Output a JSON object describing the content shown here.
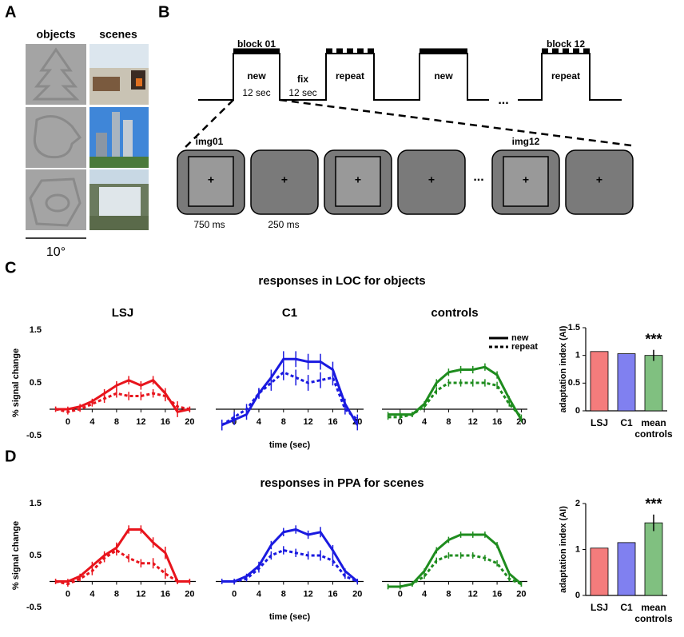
{
  "labels": [
    "A",
    "B",
    "C",
    "D"
  ],
  "panel_a": {
    "headers": [
      "objects",
      "scenes"
    ],
    "scale": "10°"
  },
  "panel_b": {
    "block_first": "block 01",
    "block_last": "block 12",
    "conditions": [
      "new",
      "repeat",
      "new",
      "repeat"
    ],
    "block_duration": "12 sec",
    "fix": "fix",
    "fix_duration": "12 sec",
    "ellipsis": "...",
    "frames": [
      "img01",
      "img12"
    ],
    "durations": [
      "750 ms",
      "250 ms"
    ],
    "fixation": "+"
  },
  "chart_data": [
    {
      "type": "line",
      "title": "responses in LOC for objects",
      "subtitle": "LSJ",
      "ylabel": "% signal change",
      "x": [
        -2,
        0,
        2,
        4,
        6,
        8,
        10,
        12,
        14,
        16,
        18,
        20
      ],
      "xlim": [
        -3,
        21
      ],
      "xticks": [
        0,
        4,
        8,
        12,
        16,
        20
      ],
      "ylim": [
        -0.5,
        1.5
      ],
      "yticks": [
        -0.5,
        0.5,
        1.5
      ],
      "series": [
        {
          "color": "#e8141c",
          "style": "solid",
          "values": [
            0,
            0,
            0.05,
            0.15,
            0.3,
            0.45,
            0.55,
            0.45,
            0.55,
            0.3,
            -0.05,
            0
          ],
          "errors": [
            0.05,
            0.05,
            0.05,
            0.05,
            0.08,
            0.08,
            0.08,
            0.08,
            0.08,
            0.1,
            0.1,
            0.05
          ]
        },
        {
          "color": "#e8141c",
          "style": "dashed",
          "values": [
            0,
            -0.05,
            0,
            0.1,
            0.2,
            0.3,
            0.25,
            0.25,
            0.3,
            0.25,
            0.05,
            0
          ],
          "errors": [
            0.05,
            0.05,
            0.05,
            0.05,
            0.08,
            0.08,
            0.08,
            0.08,
            0.08,
            0.1,
            0.1,
            0.05
          ]
        }
      ]
    },
    {
      "type": "line",
      "subtitle": "C1",
      "xlabel": "time (sec)",
      "x": [
        -2,
        0,
        2,
        4,
        6,
        8,
        10,
        12,
        14,
        16,
        18,
        20
      ],
      "xlim": [
        -3,
        21
      ],
      "xticks": [
        0,
        4,
        8,
        12,
        16,
        20
      ],
      "ylim": [
        -0.5,
        1.5
      ],
      "series": [
        {
          "name": "new",
          "color": "#1a1ae0",
          "style": "solid",
          "values": [
            -0.3,
            -0.2,
            -0.1,
            0.3,
            0.6,
            0.95,
            0.95,
            0.9,
            0.9,
            0.75,
            0.1,
            -0.3
          ],
          "errors": [
            0.1,
            0.1,
            0.1,
            0.1,
            0.15,
            0.15,
            0.15,
            0.15,
            0.15,
            0.15,
            0.1,
            0.1
          ]
        },
        {
          "name": "repeat",
          "color": "#1a1ae0",
          "style": "dashed",
          "values": [
            -0.3,
            -0.15,
            0,
            0.3,
            0.5,
            0.7,
            0.6,
            0.5,
            0.55,
            0.6,
            0,
            -0.2
          ],
          "errors": [
            0.1,
            0.1,
            0.1,
            0.1,
            0.15,
            0.15,
            0.15,
            0.15,
            0.15,
            0.15,
            0.1,
            0.1
          ]
        }
      ]
    },
    {
      "type": "line",
      "subtitle": "controls",
      "x": [
        -2,
        0,
        2,
        4,
        6,
        8,
        10,
        12,
        14,
        16,
        18,
        20
      ],
      "xlim": [
        -3,
        21
      ],
      "xticks": [
        0,
        4,
        8,
        12,
        16,
        20
      ],
      "ylim": [
        -0.5,
        1.5
      ],
      "series": [
        {
          "color": "#1e8c1e",
          "style": "solid",
          "values": [
            -0.1,
            -0.1,
            -0.1,
            0.1,
            0.5,
            0.7,
            0.75,
            0.75,
            0.8,
            0.65,
            0.2,
            -0.2
          ],
          "errors": [
            0.05,
            0.05,
            0.05,
            0.05,
            0.07,
            0.07,
            0.07,
            0.07,
            0.07,
            0.07,
            0.05,
            0.05
          ]
        },
        {
          "color": "#1e8c1e",
          "style": "dashed",
          "values": [
            -0.15,
            -0.15,
            -0.1,
            0.05,
            0.35,
            0.5,
            0.5,
            0.5,
            0.5,
            0.45,
            0.1,
            -0.15
          ],
          "errors": [
            0.05,
            0.05,
            0.05,
            0.05,
            0.07,
            0.07,
            0.07,
            0.07,
            0.07,
            0.07,
            0.05,
            0.05
          ]
        }
      ]
    },
    {
      "type": "bar",
      "ylabel": "adaptation index (AI)",
      "categories": [
        "LSJ",
        "C1",
        "mean controls"
      ],
      "values": [
        1.07,
        1.03,
        1.0
      ],
      "errors": [
        null,
        null,
        0.1
      ],
      "colors": [
        "#f47c7c",
        "#8080f0",
        "#80c080"
      ],
      "ylim": [
        0,
        1.5
      ],
      "yticks": [
        0,
        0.5,
        1,
        1.5
      ],
      "annotation": "***"
    },
    {
      "type": "line",
      "title": "responses in PPA for scenes",
      "ylabel": "% signal change",
      "x": [
        -2,
        0,
        2,
        4,
        6,
        8,
        10,
        12,
        14,
        16,
        18,
        20
      ],
      "xlim": [
        -3,
        21
      ],
      "xticks": [
        0,
        4,
        8,
        12,
        16,
        20
      ],
      "ylim": [
        -0.5,
        1.5
      ],
      "yticks": [
        -0.5,
        0.5,
        1.5
      ],
      "series": [
        {
          "color": "#e8141c",
          "style": "solid",
          "values": [
            0,
            0,
            0.1,
            0.3,
            0.5,
            0.65,
            1.0,
            1.0,
            0.75,
            0.55,
            0,
            0
          ],
          "errors": [
            0.05,
            0.05,
            0.05,
            0.08,
            0.08,
            0.1,
            0.08,
            0.08,
            0.1,
            0.12,
            0.05,
            0.05
          ]
        },
        {
          "color": "#e8141c",
          "style": "dashed",
          "values": [
            0,
            -0.05,
            0.05,
            0.2,
            0.45,
            0.6,
            0.45,
            0.35,
            0.35,
            0.15,
            0,
            0
          ],
          "errors": [
            0.05,
            0.05,
            0.05,
            0.08,
            0.08,
            0.1,
            0.08,
            0.08,
            0.1,
            0.1,
            0.05,
            0.05
          ]
        }
      ]
    },
    {
      "type": "line",
      "xlabel": "time (sec)",
      "x": [
        -2,
        0,
        2,
        4,
        6,
        8,
        10,
        12,
        14,
        16,
        18,
        20
      ],
      "xlim": [
        -3,
        21
      ],
      "xticks": [
        0,
        4,
        8,
        12,
        16,
        20
      ],
      "ylim": [
        -0.5,
        1.5
      ],
      "series": [
        {
          "color": "#1a1ae0",
          "style": "solid",
          "values": [
            0,
            0,
            0.1,
            0.3,
            0.7,
            0.95,
            1.0,
            0.9,
            0.95,
            0.6,
            0.2,
            0
          ],
          "errors": [
            0.05,
            0.05,
            0.05,
            0.08,
            0.08,
            0.08,
            0.08,
            0.08,
            0.1,
            0.1,
            0.05,
            0.05
          ]
        },
        {
          "color": "#1a1ae0",
          "style": "dashed",
          "values": [
            0,
            0,
            0.05,
            0.25,
            0.5,
            0.6,
            0.55,
            0.5,
            0.5,
            0.4,
            0.1,
            0
          ],
          "errors": [
            0.05,
            0.05,
            0.05,
            0.08,
            0.08,
            0.08,
            0.08,
            0.08,
            0.1,
            0.1,
            0.05,
            0.05
          ]
        }
      ]
    },
    {
      "type": "line",
      "x": [
        -2,
        0,
        2,
        4,
        6,
        8,
        10,
        12,
        14,
        16,
        18,
        20
      ],
      "xlim": [
        -3,
        21
      ],
      "xticks": [
        0,
        4,
        8,
        12,
        16,
        20
      ],
      "ylim": [
        -0.5,
        1.5
      ],
      "series": [
        {
          "color": "#1e8c1e",
          "style": "solid",
          "values": [
            -0.1,
            -0.1,
            -0.05,
            0.2,
            0.6,
            0.8,
            0.9,
            0.9,
            0.9,
            0.7,
            0.15,
            -0.05
          ],
          "errors": [
            0.05,
            0.05,
            0.05,
            0.05,
            0.06,
            0.06,
            0.06,
            0.06,
            0.06,
            0.06,
            0.05,
            0.05
          ]
        },
        {
          "color": "#1e8c1e",
          "style": "dashed",
          "values": [
            -0.1,
            -0.1,
            -0.05,
            0.1,
            0.4,
            0.5,
            0.5,
            0.5,
            0.45,
            0.35,
            0.05,
            -0.05
          ],
          "errors": [
            0.05,
            0.05,
            0.05,
            0.05,
            0.06,
            0.06,
            0.06,
            0.06,
            0.06,
            0.06,
            0.05,
            0.05
          ]
        }
      ]
    },
    {
      "type": "bar",
      "ylabel": "adaptation index (AI)",
      "categories": [
        "LSJ",
        "C1",
        "mean controls"
      ],
      "values": [
        1.03,
        1.15,
        1.58
      ],
      "errors": [
        null,
        null,
        0.18
      ],
      "colors": [
        "#f47c7c",
        "#8080f0",
        "#80c080"
      ],
      "ylim": [
        0,
        2
      ],
      "yticks": [
        0,
        1,
        2
      ],
      "annotation": "***"
    }
  ]
}
